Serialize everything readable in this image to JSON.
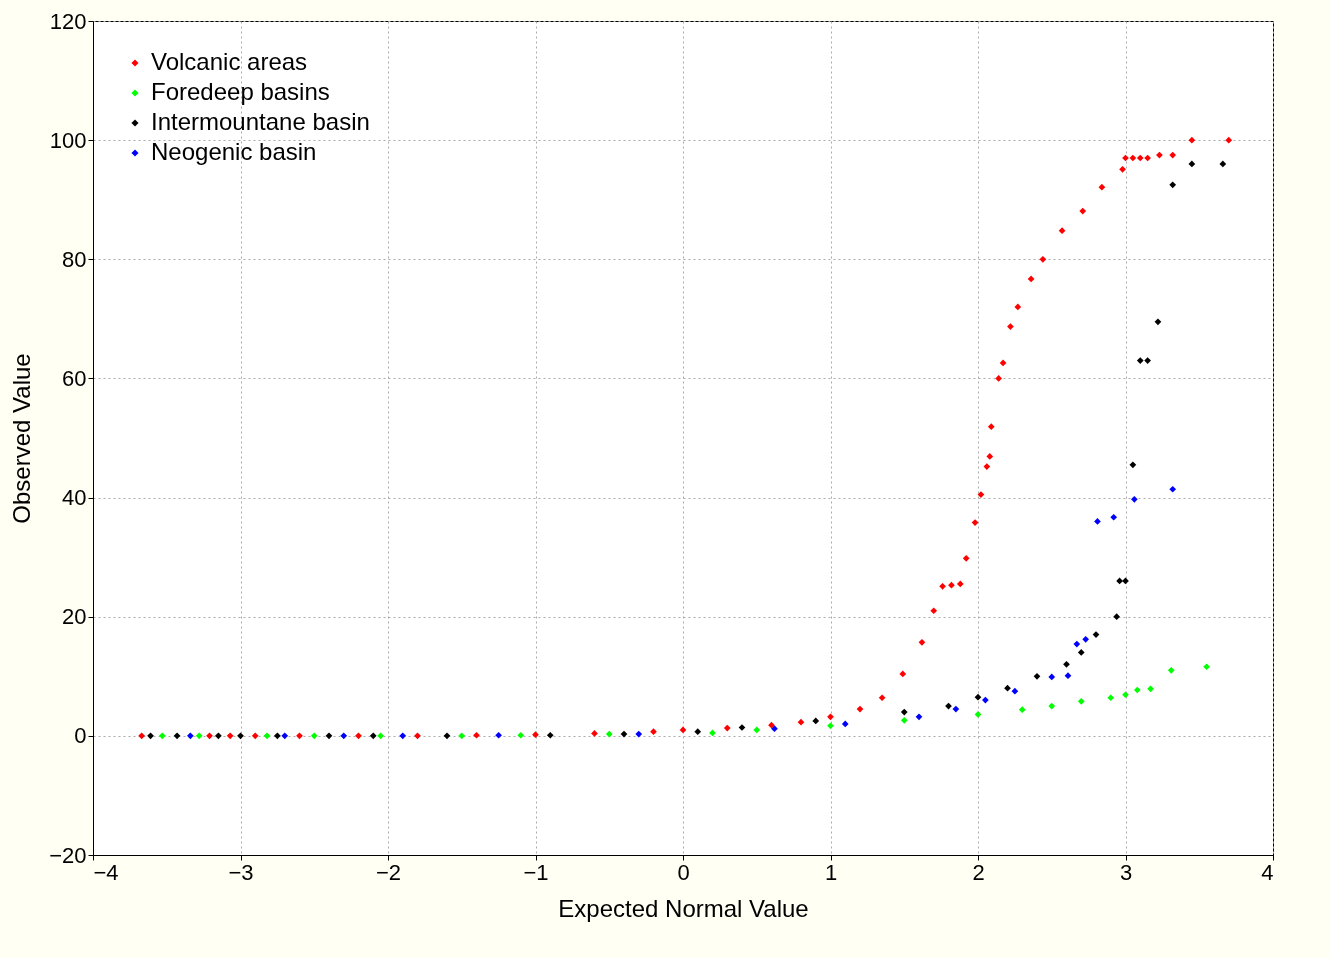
{
  "chart_data": {
    "type": "scatter",
    "xlabel": "Expected Normal Value",
    "ylabel": "Observed Value",
    "xlim": [
      -4,
      4
    ],
    "xticks": [
      -4,
      -3,
      -2,
      -1,
      0,
      1,
      2,
      3,
      4
    ],
    "ylim": [
      -20,
      120
    ],
    "yticks": [
      -20,
      0,
      20,
      40,
      60,
      80,
      100,
      120
    ],
    "grid": true,
    "legend": "top left",
    "marker": "diamond",
    "series": [
      {
        "name": "Volcanic areas",
        "color": "#ff0000",
        "x": [
          -3.67,
          -3.21,
          -3.07,
          -2.9,
          -2.6,
          -2.2,
          -1.8,
          -1.4,
          -1,
          -0.6,
          -0.2,
          0,
          0.3,
          0.6,
          0.8,
          1.0,
          1.2,
          1.35,
          1.49,
          1.62,
          1.7,
          1.76,
          1.82,
          1.88,
          1.92,
          1.98,
          2.02,
          2.06,
          2.08,
          2.09,
          2.14,
          2.17,
          2.22,
          2.27,
          2.36,
          2.44,
          2.57,
          2.71,
          2.84,
          2.98,
          3.0,
          3.05,
          3.1,
          3.15,
          3.23,
          3.32,
          3.45,
          3.7
        ],
        "values": [
          0,
          0,
          0,
          0,
          0,
          0,
          0,
          0.1,
          0.2,
          0.4,
          0.7,
          1,
          1.3,
          1.8,
          2.3,
          3.2,
          4.5,
          6.4,
          10.4,
          15.7,
          21,
          25.1,
          25.3,
          25.5,
          29.8,
          35.8,
          40.5,
          45.2,
          46.9,
          51.9,
          60,
          62.6,
          68.7,
          72,
          76.7,
          80,
          84.8,
          88.1,
          92.1,
          95.1,
          97,
          97,
          97,
          97,
          97.5,
          97.5,
          100,
          100
        ]
      },
      {
        "name": "Foredeep basins",
        "color": "#00ff00",
        "x": [
          -3.53,
          -3.28,
          -2.82,
          -2.5,
          -2.05,
          -1.5,
          -1.1,
          -0.5,
          0.2,
          0.5,
          1,
          1.5,
          2,
          2.3,
          2.5,
          2.7,
          2.9,
          3.0,
          3.08,
          3.17,
          3.31,
          3.55
        ],
        "values": [
          0,
          0,
          0,
          0,
          0,
          0,
          0.1,
          0.3,
          0.5,
          1,
          1.7,
          2.6,
          3.6,
          4.4,
          5,
          5.8,
          6.4,
          6.9,
          7.7,
          7.9,
          11,
          11.6
        ]
      },
      {
        "name": "Intermountane basin",
        "color": "#000000",
        "x": [
          -3.61,
          -3.43,
          -3.15,
          -3.0,
          -2.75,
          -2.4,
          -2.1,
          -1.6,
          -0.9,
          -0.4,
          0.1,
          0.4,
          0.9,
          1.5,
          1.8,
          2,
          2.2,
          2.4,
          2.6,
          2.7,
          2.8,
          2.94,
          2.96,
          3.0,
          3.05,
          3.1,
          3.15,
          3.22,
          3.32,
          3.45,
          3.66
        ],
        "values": [
          0,
          0,
          0,
          0,
          0,
          0,
          0,
          0,
          0.1,
          0.3,
          0.7,
          1.4,
          2.5,
          4,
          5,
          6.5,
          8,
          10,
          12,
          14,
          17,
          20,
          26,
          26,
          45.5,
          63,
          63,
          69.5,
          92.5,
          96,
          96
        ]
      },
      {
        "name": "Neogenic basin",
        "color": "#0000ff",
        "x": [
          -3.34,
          -2.7,
          -2.3,
          -1.9,
          -1.25,
          -0.3,
          0.62,
          1.1,
          1.6,
          1.85,
          2.05,
          2.25,
          2.5,
          2.61,
          2.67,
          2.73,
          2.81,
          2.92,
          3.06,
          3.32
        ],
        "values": [
          0,
          0,
          0,
          0,
          0.1,
          0.3,
          1.2,
          2,
          3.2,
          4.5,
          6,
          7.5,
          9.9,
          10.1,
          15.4,
          16.2,
          36,
          36.7,
          39.7,
          41.4
        ]
      }
    ]
  }
}
